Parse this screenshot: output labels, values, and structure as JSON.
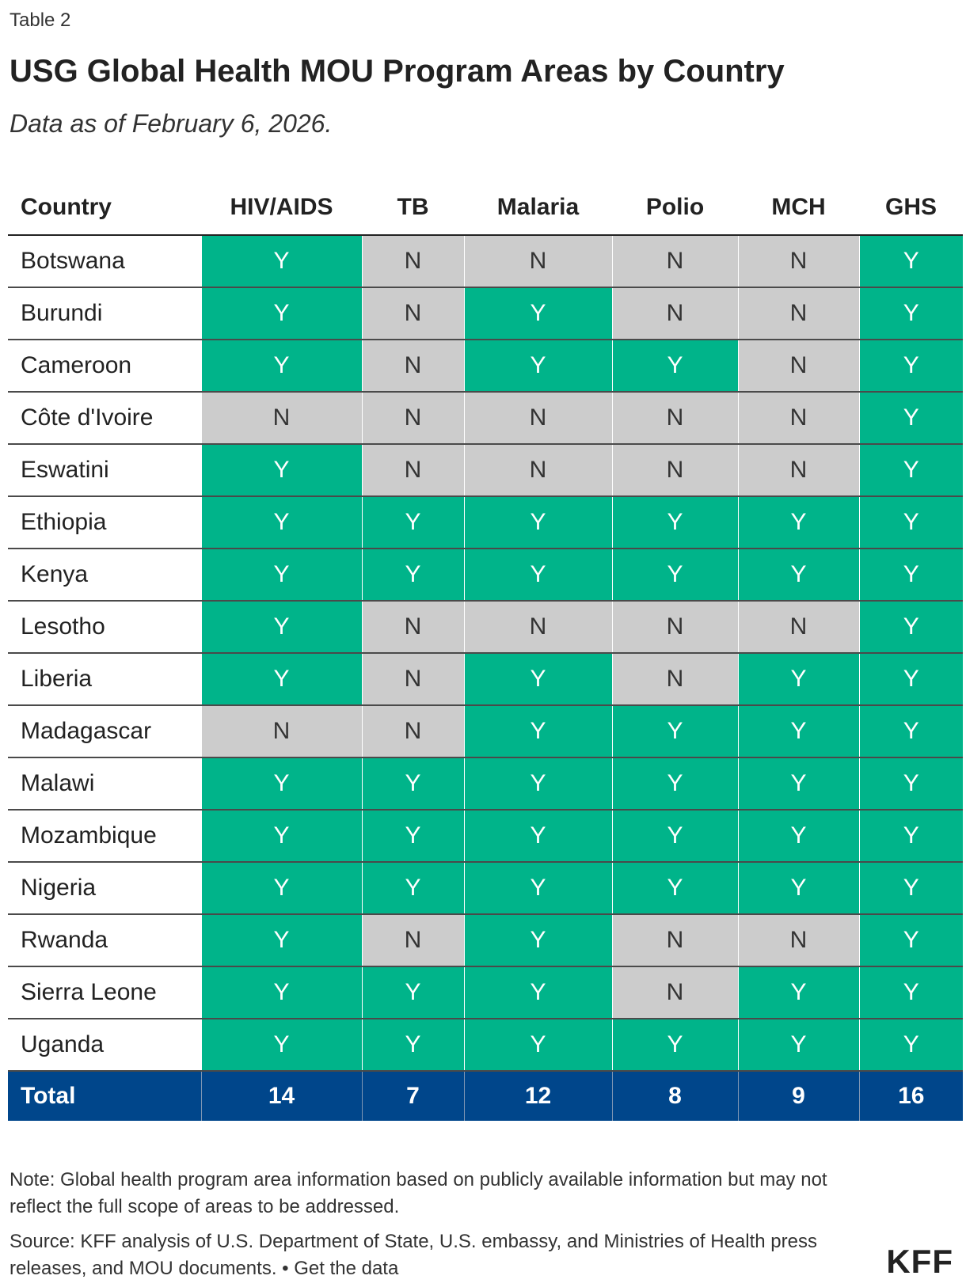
{
  "header": {
    "table_label": "Table 2",
    "title": "USG Global Health MOU Program Areas by Country",
    "subtitle": "Data as of February 6, 2026."
  },
  "chart_data": {
    "type": "table",
    "columns": [
      "Country",
      "HIV/AIDS",
      "TB",
      "Malaria",
      "Polio",
      "MCH",
      "GHS"
    ],
    "rows": [
      {
        "country": "Botswana",
        "values": [
          "Y",
          "N",
          "N",
          "N",
          "N",
          "Y"
        ]
      },
      {
        "country": "Burundi",
        "values": [
          "Y",
          "N",
          "Y",
          "N",
          "N",
          "Y"
        ]
      },
      {
        "country": "Cameroon",
        "values": [
          "Y",
          "N",
          "Y",
          "Y",
          "N",
          "Y"
        ]
      },
      {
        "country": "Côte d'Ivoire",
        "values": [
          "N",
          "N",
          "N",
          "N",
          "N",
          "Y"
        ]
      },
      {
        "country": "Eswatini",
        "values": [
          "Y",
          "N",
          "N",
          "N",
          "N",
          "Y"
        ]
      },
      {
        "country": "Ethiopia",
        "values": [
          "Y",
          "Y",
          "Y",
          "Y",
          "Y",
          "Y"
        ]
      },
      {
        "country": "Kenya",
        "values": [
          "Y",
          "Y",
          "Y",
          "Y",
          "Y",
          "Y"
        ]
      },
      {
        "country": "Lesotho",
        "values": [
          "Y",
          "N",
          "N",
          "N",
          "N",
          "Y"
        ]
      },
      {
        "country": "Liberia",
        "values": [
          "Y",
          "N",
          "Y",
          "N",
          "Y",
          "Y"
        ]
      },
      {
        "country": "Madagascar",
        "values": [
          "N",
          "N",
          "Y",
          "Y",
          "Y",
          "Y"
        ]
      },
      {
        "country": "Malawi",
        "values": [
          "Y",
          "Y",
          "Y",
          "Y",
          "Y",
          "Y"
        ]
      },
      {
        "country": "Mozambique",
        "values": [
          "Y",
          "Y",
          "Y",
          "Y",
          "Y",
          "Y"
        ]
      },
      {
        "country": "Nigeria",
        "values": [
          "Y",
          "Y",
          "Y",
          "Y",
          "Y",
          "Y"
        ]
      },
      {
        "country": "Rwanda",
        "values": [
          "Y",
          "N",
          "Y",
          "N",
          "N",
          "Y"
        ]
      },
      {
        "country": "Sierra Leone",
        "values": [
          "Y",
          "Y",
          "Y",
          "N",
          "Y",
          "Y"
        ]
      },
      {
        "country": "Uganda",
        "values": [
          "Y",
          "Y",
          "Y",
          "Y",
          "Y",
          "Y"
        ]
      }
    ],
    "total": {
      "label": "Total",
      "values": [
        "14",
        "7",
        "12",
        "8",
        "9",
        "16"
      ]
    },
    "colors": {
      "yes": "#00b48a",
      "no": "#cccccc",
      "total": "#00468b"
    }
  },
  "footer": {
    "note": "Note: Global health program area information based on publicly available information but may not reflect the full scope of areas to be addressed.",
    "source": "Source: KFF analysis of U.S. Department of State, U.S. embassy, and Ministries of Health press releases, and MOU documents. • Get the data",
    "logo": "KFF"
  }
}
